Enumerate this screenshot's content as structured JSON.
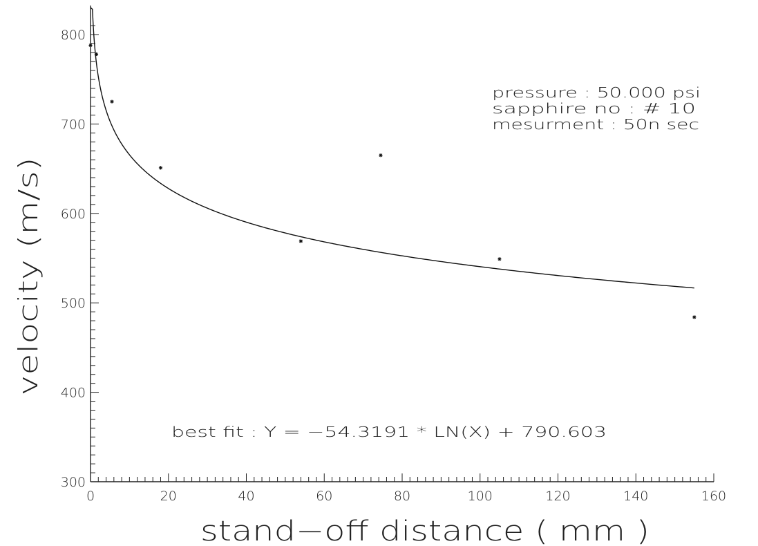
{
  "chart_data": {
    "type": "scatter",
    "xlabel": "stand−off  distance  (   mm   )",
    "ylabel": "velocity  (m/s)",
    "xlim": [
      0,
      160
    ],
    "ylim": [
      300,
      820
    ],
    "x_ticks": [
      0,
      20,
      40,
      60,
      80,
      100,
      120,
      140,
      160
    ],
    "y_ticks": [
      300,
      400,
      500,
      600,
      700,
      800
    ],
    "grid": false,
    "series": [
      {
        "type": "scatter",
        "marker": "asterisk",
        "points": [
          {
            "x": 0,
            "y": 788
          },
          {
            "x": 1.5,
            "y": 778
          },
          {
            "x": 5.5,
            "y": 725
          },
          {
            "x": 18,
            "y": 651
          },
          {
            "x": 54,
            "y": 569
          },
          {
            "x": 74.5,
            "y": 665
          },
          {
            "x": 105,
            "y": 549
          },
          {
            "x": 155,
            "y": 484
          }
        ]
      },
      {
        "type": "line",
        "function": "-54.3191 * LN(X) + 790.603",
        "coef_a": -54.3191,
        "coef_b": 790.603,
        "x_range": [
          0.6,
          155
        ]
      }
    ],
    "annotations": {
      "conditions": [
        "pressure  :  50.000  psi",
        "sapphire  no  :  #  10",
        "mesurment  :  50n  sec"
      ],
      "fit": "best  fit  :  Y  =  −54.3191  *  LN(X)  +  790.603"
    }
  }
}
